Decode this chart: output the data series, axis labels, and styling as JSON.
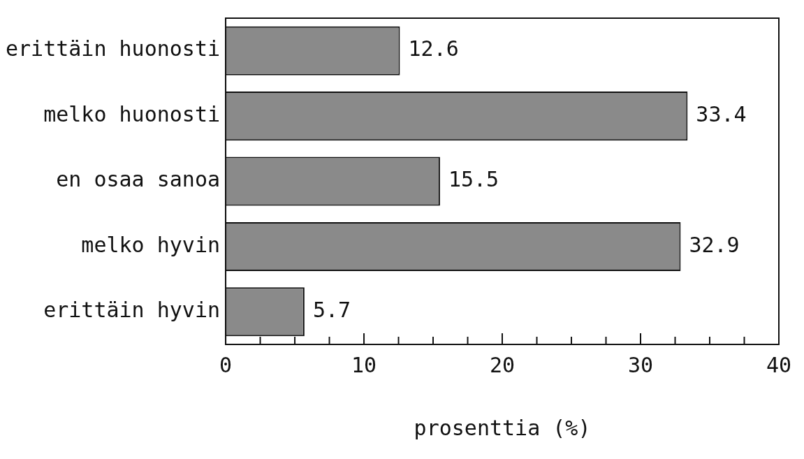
{
  "chart_data": {
    "type": "bar",
    "orientation": "horizontal",
    "xlabel": "prosenttia (%)",
    "categories": [
      "erittäin huonosti",
      "melko huonosti",
      "en osaa sanoa",
      "melko hyvin",
      "erittäin hyvin"
    ],
    "values": [
      12.6,
      33.4,
      15.5,
      32.9,
      5.7
    ],
    "color": "#8a8a8a",
    "data_labels": true,
    "grid": false,
    "legend": false,
    "xlim": [
      0,
      40
    ],
    "xticks": [
      0,
      {
        "value": 2.5,
        "label": null
      },
      {
        "value": 5,
        "label": null
      },
      {
        "value": 7.5,
        "label": null
      },
      10,
      {
        "value": 12.5,
        "label": null
      },
      {
        "value": 15,
        "label": null
      },
      {
        "value": 17.5,
        "label": null
      },
      20,
      {
        "value": 22.5,
        "label": null
      },
      {
        "value": 25,
        "label": null
      },
      {
        "value": 27.5,
        "label": null
      },
      30,
      {
        "value": 32.5,
        "label": null
      },
      {
        "value": 35,
        "label": null
      },
      {
        "value": 37.5,
        "label": null
      },
      40
    ]
  }
}
